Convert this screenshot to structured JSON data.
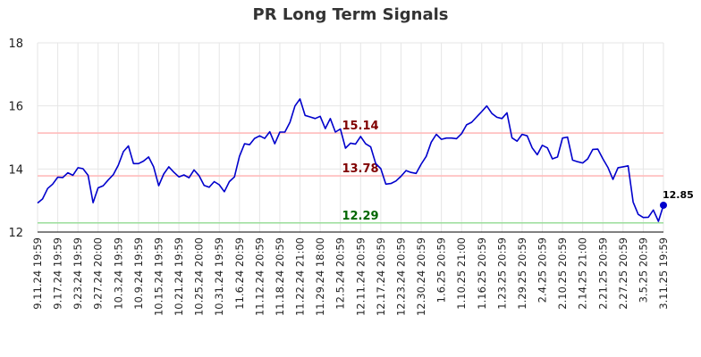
{
  "chart_data": {
    "type": "line",
    "title": "PR Long Term Signals",
    "xlabel": "",
    "ylabel": "",
    "ylim": [
      12,
      18
    ],
    "yticks": [
      12,
      14,
      16,
      18
    ],
    "grid": true,
    "xtick_labels": [
      "9.11.24 19:59",
      "9.17.24 19:59",
      "9.23.24 19:59",
      "9.27.24 20:00",
      "10.3.24 19:59",
      "10.9.24 19:59",
      "10.15.24 19:59",
      "10.21.24 19:59",
      "10.25.24 20:00",
      "10.31.24 19:59",
      "11.6.24 20:59",
      "11.12.24 20:59",
      "11.18.24 20:59",
      "11.22.24 21:00",
      "11.29.24 18:00",
      "12.5.24 20:59",
      "12.11.24 20:59",
      "12.17.24 20:59",
      "12.23.24 20:59",
      "12.30.24 20:59",
      "1.6.25 20:59",
      "1.10.25 21:00",
      "1.16.25 20:59",
      "1.23.25 20:59",
      "1.29.25 20:59",
      "2.4.25 20:59",
      "2.10.25 20:59",
      "2.14.25 21:00",
      "2.21.25 20:59",
      "2.27.25 20:59",
      "3.5.25 20:59",
      "3.11.25 19:59"
    ],
    "series": [
      {
        "color": "#0000cc",
        "values": [
          12.92,
          13.05,
          13.38,
          13.52,
          13.74,
          13.73,
          13.88,
          13.8,
          14.04,
          14.01,
          13.8,
          12.93,
          13.4,
          13.47,
          13.65,
          13.82,
          14.12,
          14.55,
          14.73,
          14.17,
          14.17,
          14.25,
          14.38,
          14.07,
          13.47,
          13.84,
          14.07,
          13.9,
          13.75,
          13.81,
          13.72,
          13.97,
          13.79,
          13.48,
          13.42,
          13.6,
          13.5,
          13.28,
          13.6,
          13.75,
          14.4,
          14.8,
          14.77,
          14.97,
          15.05,
          14.97,
          15.18,
          14.8,
          15.17,
          15.17,
          15.48,
          16.0,
          16.22,
          15.7,
          15.65,
          15.6,
          15.67,
          15.28,
          15.6,
          15.17,
          15.27,
          14.66,
          14.82,
          14.79,
          15.03,
          14.8,
          14.7,
          14.17,
          14.01,
          13.52,
          13.54,
          13.62,
          13.77,
          13.95,
          13.89,
          13.86,
          14.15,
          14.4,
          14.85,
          15.1,
          14.94,
          14.98,
          14.98,
          14.96,
          15.12,
          15.4,
          15.48,
          15.65,
          15.82,
          16.0,
          15.76,
          15.64,
          15.6,
          15.78,
          14.99,
          14.88,
          15.1,
          15.05,
          14.67,
          14.45,
          14.75,
          14.67,
          14.32,
          14.38,
          14.98,
          15.01,
          14.28,
          14.23,
          14.19,
          14.32,
          14.62,
          14.63,
          14.32,
          14.05,
          13.67,
          14.04,
          14.07,
          14.1,
          12.95,
          12.56,
          12.46,
          12.47,
          12.7,
          12.34,
          12.85
        ]
      }
    ],
    "reference_lines": [
      {
        "value": 15.14,
        "label": "15.14",
        "color": "#ffbbbb",
        "label_color": "#800000"
      },
      {
        "value": 13.78,
        "label": "13.78",
        "color": "#ffbbbb",
        "label_color": "#800000"
      },
      {
        "value": 12.29,
        "label": "12.29",
        "color": "#99dd99",
        "label_color": "#006600"
      }
    ],
    "last_value_label": "12.85"
  }
}
